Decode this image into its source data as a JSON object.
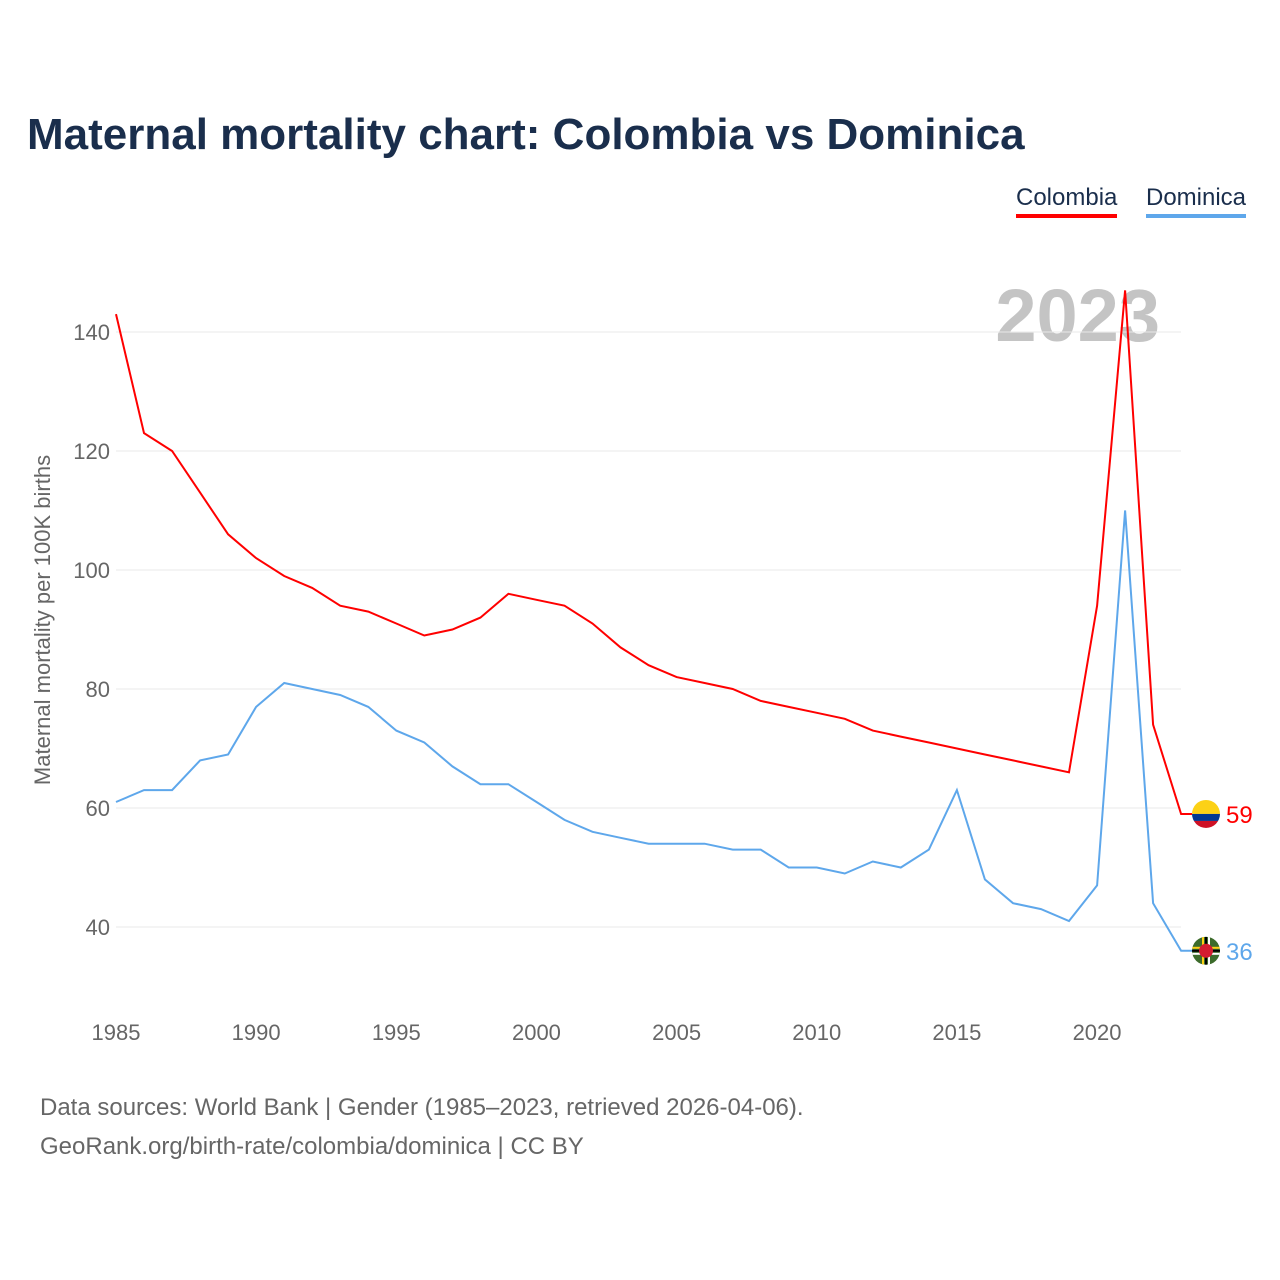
{
  "title": "Maternal mortality chart: Colombia vs Dominica",
  "footer": {
    "line1": "Data sources: World Bank | Gender (1985–2023, retrieved 2026-04-06).",
    "line2": "GeoRank.org/birth-rate/colombia/dominica | CC BY"
  },
  "chart_data": {
    "type": "line",
    "title": "Maternal mortality chart: Colombia vs Dominica",
    "ylabel": "Maternal mortality per 100K births",
    "xlabel": "",
    "year_label": "2023",
    "x": [
      1985,
      1986,
      1987,
      1988,
      1989,
      1990,
      1991,
      1992,
      1993,
      1994,
      1995,
      1996,
      1997,
      1998,
      1999,
      2000,
      2001,
      2002,
      2003,
      2004,
      2005,
      2006,
      2007,
      2008,
      2009,
      2010,
      2011,
      2012,
      2013,
      2014,
      2015,
      2016,
      2017,
      2018,
      2019,
      2020,
      2021,
      2022,
      2023
    ],
    "xticks": [
      "1985",
      "1990",
      "1995",
      "2000",
      "2005",
      "2010",
      "2015",
      "2020"
    ],
    "yticks": [
      "40",
      "60",
      "80",
      "100",
      "120",
      "140"
    ],
    "ylim": [
      28,
      150
    ],
    "xlim": [
      1985,
      2023
    ],
    "grid": true,
    "legend_position": "top-right",
    "series": [
      {
        "name": "Colombia",
        "color": "#ff0000",
        "end_label": "59",
        "flag": "colombia-flag",
        "values": [
          143,
          123,
          120,
          113,
          106,
          102,
          99,
          97,
          94,
          93,
          91,
          89,
          90,
          92,
          96,
          95,
          94,
          91,
          87,
          84,
          82,
          81,
          80,
          78,
          77,
          76,
          75,
          73,
          72,
          71,
          70,
          69,
          68,
          67,
          66,
          94,
          147,
          74,
          59
        ]
      },
      {
        "name": "Dominica",
        "color": "#5ea7eb",
        "end_label": "36",
        "flag": "dominica-flag",
        "values": [
          61,
          63,
          63,
          68,
          69,
          77,
          81,
          80,
          79,
          77,
          73,
          71,
          67,
          64,
          64,
          61,
          58,
          56,
          55,
          54,
          54,
          54,
          53,
          53,
          50,
          50,
          49,
          51,
          50,
          53,
          63,
          48,
          44,
          43,
          41,
          47,
          110,
          44,
          36
        ]
      }
    ]
  }
}
